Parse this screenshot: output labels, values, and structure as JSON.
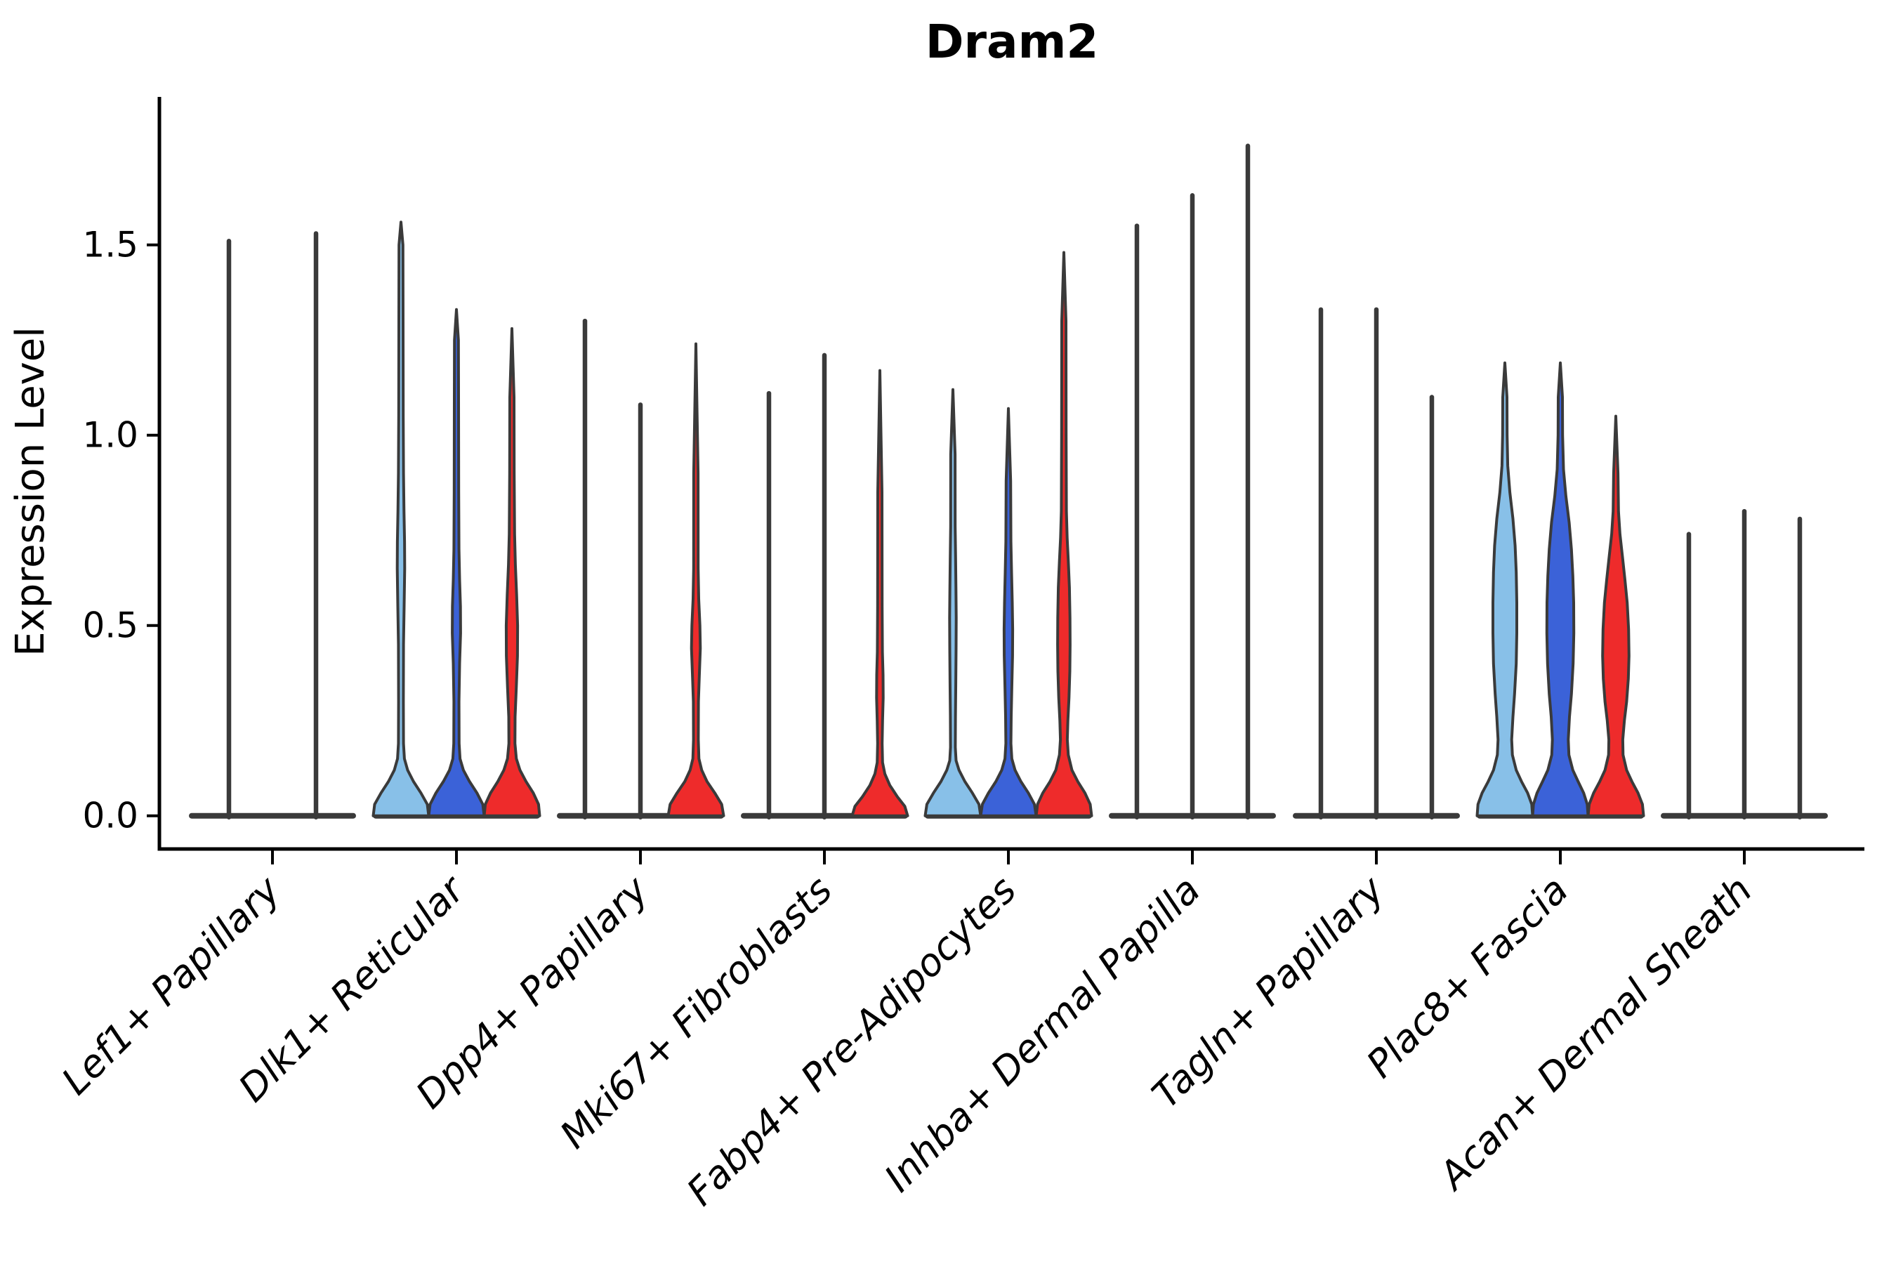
{
  "chart_data": {
    "type": "violin",
    "title": "Dram2",
    "xlabel": "",
    "ylabel": "Expression Level",
    "ylim": [
      -0.09,
      1.89
    ],
    "yticks": [
      0.0,
      0.5,
      1.0,
      1.5
    ],
    "ytick_labels": [
      "0.0",
      "0.5",
      "1.0",
      "1.5"
    ],
    "grid": false,
    "legend": "none",
    "hue_colors": [
      "#88C0E8",
      "#3B62D8",
      "#EE2B2B"
    ],
    "edge_color": "#3A3A3A",
    "categories": [
      "Lef1+ Papillary",
      "Dlk1+ Reticular",
      "Dpp4+ Papillary",
      "Mki67+ Fibroblasts",
      "Fabp4+ Pre-Adipocytes",
      "Inhba+ Dermal Papilla",
      "Tagln+ Papillary",
      "Plac8+ Fascia",
      "Acan+ Dermal Sheath"
    ],
    "violins": [
      [
        {
          "color": "#88C0E8",
          "max": 1.51,
          "dx": -62,
          "profile": null
        },
        {
          "color": "#3B62D8",
          "max": 0.0,
          "profile": null
        },
        {
          "color": "#EE2B2B",
          "max": 1.53,
          "dx": 62,
          "profile": null
        }
      ],
      [
        {
          "color": "#88C0E8",
          "max": 1.56,
          "profile": [
            [
              0,
              1
            ],
            [
              0.03,
              0.95
            ],
            [
              0.06,
              0.72
            ],
            [
              0.09,
              0.45
            ],
            [
              0.12,
              0.24
            ],
            [
              0.15,
              0.125
            ],
            [
              0.19,
              0.09
            ],
            [
              0.3,
              0.085
            ],
            [
              0.45,
              0.09
            ],
            [
              0.55,
              0.115
            ],
            [
              0.65,
              0.135
            ],
            [
              0.72,
              0.13
            ],
            [
              0.8,
              0.11
            ],
            [
              0.9,
              0.09
            ],
            [
              1.05,
              0.08
            ],
            [
              1.3,
              0.075
            ],
            [
              1.5,
              0.07
            ]
          ]
        },
        {
          "color": "#3B62D8",
          "max": 1.33,
          "profile": [
            [
              0,
              1
            ],
            [
              0.03,
              0.95
            ],
            [
              0.06,
              0.74
            ],
            [
              0.09,
              0.47
            ],
            [
              0.12,
              0.25
            ],
            [
              0.15,
              0.13
            ],
            [
              0.19,
              0.095
            ],
            [
              0.3,
              0.09
            ],
            [
              0.4,
              0.115
            ],
            [
              0.48,
              0.15
            ],
            [
              0.55,
              0.145
            ],
            [
              0.62,
              0.115
            ],
            [
              0.7,
              0.09
            ],
            [
              0.85,
              0.08
            ],
            [
              1.1,
              0.075
            ],
            [
              1.25,
              0.07
            ]
          ]
        },
        {
          "color": "#EE2B2B",
          "max": 1.28,
          "profile": [
            [
              0,
              1
            ],
            [
              0.03,
              0.96
            ],
            [
              0.06,
              0.77
            ],
            [
              0.09,
              0.51
            ],
            [
              0.12,
              0.29
            ],
            [
              0.15,
              0.16
            ],
            [
              0.19,
              0.11
            ],
            [
              0.26,
              0.115
            ],
            [
              0.34,
              0.16
            ],
            [
              0.42,
              0.2
            ],
            [
              0.5,
              0.205
            ],
            [
              0.58,
              0.17
            ],
            [
              0.66,
              0.125
            ],
            [
              0.74,
              0.095
            ],
            [
              0.9,
              0.08
            ],
            [
              1.1,
              0.075
            ]
          ]
        }
      ],
      [
        {
          "color": "#88C0E8",
          "max": 1.3,
          "profile": null
        },
        {
          "color": "#3B62D8",
          "max": 1.08,
          "profile": null
        },
        {
          "color": "#EE2B2B",
          "max": 1.24,
          "profile": [
            [
              0,
              1
            ],
            [
              0.03,
              0.93
            ],
            [
              0.06,
              0.68
            ],
            [
              0.09,
              0.4
            ],
            [
              0.12,
              0.21
            ],
            [
              0.15,
              0.11
            ],
            [
              0.2,
              0.085
            ],
            [
              0.3,
              0.09
            ],
            [
              0.37,
              0.125
            ],
            [
              0.44,
              0.16
            ],
            [
              0.5,
              0.145
            ],
            [
              0.57,
              0.1
            ],
            [
              0.65,
              0.082
            ],
            [
              0.9,
              0.078
            ]
          ]
        }
      ],
      [
        {
          "color": "#88C0E8",
          "max": 1.11,
          "profile": null
        },
        {
          "color": "#3B62D8",
          "max": 1.21,
          "profile": null
        },
        {
          "color": "#EE2B2B",
          "max": 1.17,
          "profile": [
            [
              0,
              1
            ],
            [
              0.025,
              0.9
            ],
            [
              0.05,
              0.63
            ],
            [
              0.08,
              0.36
            ],
            [
              0.11,
              0.18
            ],
            [
              0.14,
              0.095
            ],
            [
              0.19,
              0.08
            ],
            [
              0.25,
              0.095
            ],
            [
              0.31,
              0.12
            ],
            [
              0.37,
              0.115
            ],
            [
              0.43,
              0.09
            ],
            [
              0.55,
              0.08
            ],
            [
              0.85,
              0.075
            ]
          ]
        }
      ],
      [
        {
          "color": "#88C0E8",
          "max": 1.12,
          "profile": [
            [
              0,
              1
            ],
            [
              0.03,
              0.94
            ],
            [
              0.06,
              0.7
            ],
            [
              0.09,
              0.43
            ],
            [
              0.12,
              0.22
            ],
            [
              0.145,
              0.115
            ],
            [
              0.18,
              0.085
            ],
            [
              0.26,
              0.09
            ],
            [
              0.35,
              0.105
            ],
            [
              0.44,
              0.115
            ],
            [
              0.52,
              0.12
            ],
            [
              0.6,
              0.11
            ],
            [
              0.68,
              0.095
            ],
            [
              0.76,
              0.082
            ],
            [
              0.95,
              0.078
            ]
          ]
        },
        {
          "color": "#3B62D8",
          "max": 1.07,
          "profile": [
            [
              0,
              1
            ],
            [
              0.03,
              0.94
            ],
            [
              0.06,
              0.72
            ],
            [
              0.09,
              0.45
            ],
            [
              0.12,
              0.24
            ],
            [
              0.15,
              0.125
            ],
            [
              0.19,
              0.09
            ],
            [
              0.26,
              0.1
            ],
            [
              0.34,
              0.125
            ],
            [
              0.42,
              0.15
            ],
            [
              0.49,
              0.155
            ],
            [
              0.56,
              0.14
            ],
            [
              0.64,
              0.115
            ],
            [
              0.72,
              0.09
            ],
            [
              0.88,
              0.08
            ]
          ]
        },
        {
          "color": "#EE2B2B",
          "max": 1.48,
          "profile": [
            [
              0,
              1
            ],
            [
              0.03,
              0.95
            ],
            [
              0.06,
              0.76
            ],
            [
              0.09,
              0.5
            ],
            [
              0.12,
              0.29
            ],
            [
              0.16,
              0.16
            ],
            [
              0.2,
              0.125
            ],
            [
              0.25,
              0.145
            ],
            [
              0.31,
              0.185
            ],
            [
              0.38,
              0.215
            ],
            [
              0.45,
              0.225
            ],
            [
              0.52,
              0.22
            ],
            [
              0.6,
              0.2
            ],
            [
              0.67,
              0.16
            ],
            [
              0.73,
              0.12
            ],
            [
              0.8,
              0.09
            ],
            [
              1.0,
              0.08
            ],
            [
              1.3,
              0.075
            ]
          ]
        }
      ],
      [
        {
          "color": "#88C0E8",
          "max": 1.55,
          "profile": null
        },
        {
          "color": "#3B62D8",
          "max": 1.63,
          "profile": null
        },
        {
          "color": "#EE2B2B",
          "max": 1.76,
          "profile": null
        }
      ],
      [
        {
          "color": "#88C0E8",
          "max": 1.33,
          "profile": null
        },
        {
          "color": "#3B62D8",
          "max": 1.33,
          "profile": null
        },
        {
          "color": "#EE2B2B",
          "max": 1.1,
          "profile": null
        }
      ],
      [
        {
          "color": "#88C0E8",
          "max": 1.19,
          "profile": [
            [
              0,
              1
            ],
            [
              0.03,
              0.97
            ],
            [
              0.06,
              0.82
            ],
            [
              0.09,
              0.6
            ],
            [
              0.12,
              0.41
            ],
            [
              0.16,
              0.27
            ],
            [
              0.2,
              0.245
            ],
            [
              0.26,
              0.29
            ],
            [
              0.32,
              0.35
            ],
            [
              0.4,
              0.41
            ],
            [
              0.48,
              0.43
            ],
            [
              0.56,
              0.43
            ],
            [
              0.64,
              0.41
            ],
            [
              0.71,
              0.37
            ],
            [
              0.78,
              0.29
            ],
            [
              0.85,
              0.18
            ],
            [
              0.92,
              0.105
            ],
            [
              1.0,
              0.08
            ],
            [
              1.1,
              0.075
            ]
          ]
        },
        {
          "color": "#3B62D8",
          "max": 1.19,
          "profile": [
            [
              0,
              1
            ],
            [
              0.03,
              0.97
            ],
            [
              0.06,
              0.84
            ],
            [
              0.09,
              0.64
            ],
            [
              0.12,
              0.45
            ],
            [
              0.16,
              0.31
            ],
            [
              0.2,
              0.285
            ],
            [
              0.26,
              0.33
            ],
            [
              0.32,
              0.4
            ],
            [
              0.4,
              0.46
            ],
            [
              0.48,
              0.485
            ],
            [
              0.56,
              0.48
            ],
            [
              0.63,
              0.45
            ],
            [
              0.7,
              0.4
            ],
            [
              0.77,
              0.32
            ],
            [
              0.84,
              0.2
            ],
            [
              0.91,
              0.115
            ],
            [
              1.0,
              0.08
            ],
            [
              1.1,
              0.075
            ]
          ]
        },
        {
          "color": "#EE2B2B",
          "max": 1.05,
          "profile": [
            [
              0,
              1
            ],
            [
              0.03,
              0.96
            ],
            [
              0.06,
              0.8
            ],
            [
              0.09,
              0.58
            ],
            [
              0.12,
              0.39
            ],
            [
              0.16,
              0.26
            ],
            [
              0.2,
              0.25
            ],
            [
              0.25,
              0.31
            ],
            [
              0.3,
              0.39
            ],
            [
              0.36,
              0.45
            ],
            [
              0.42,
              0.475
            ],
            [
              0.49,
              0.46
            ],
            [
              0.56,
              0.41
            ],
            [
              0.62,
              0.33
            ],
            [
              0.68,
              0.24
            ],
            [
              0.74,
              0.15
            ],
            [
              0.8,
              0.095
            ],
            [
              0.9,
              0.078
            ]
          ]
        }
      ],
      [
        {
          "color": "#88C0E8",
          "max": 0.74,
          "profile": null
        },
        {
          "color": "#3B62D8",
          "max": 0.8,
          "profile": null
        },
        {
          "color": "#EE2B2B",
          "max": 0.78,
          "profile": null
        }
      ]
    ]
  }
}
